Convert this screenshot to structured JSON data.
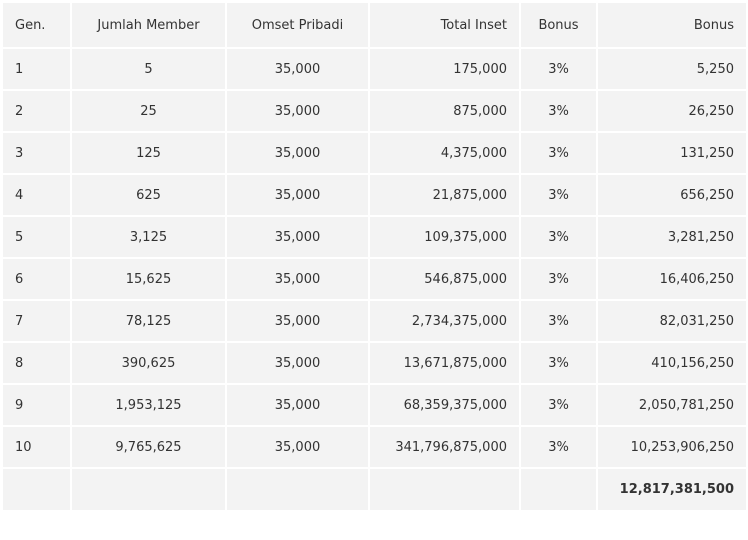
{
  "table": {
    "header": [
      "Gen.",
      "Jumlah Member",
      "Omset Pribadi",
      "Total Inset",
      "Bonus",
      "Bonus"
    ],
    "rows": [
      [
        "1",
        "5",
        "35,000",
        "175,000",
        "3%",
        "5,250"
      ],
      [
        "2",
        "25",
        "35,000",
        "875,000",
        "3%",
        "26,250"
      ],
      [
        "3",
        "125",
        "35,000",
        "4,375,000",
        "3%",
        "131,250"
      ],
      [
        "4",
        "625",
        "35,000",
        "21,875,000",
        "3%",
        "656,250"
      ],
      [
        "5",
        "3,125",
        "35,000",
        "109,375,000",
        "3%",
        "3,281,250"
      ],
      [
        "6",
        "15,625",
        "35,000",
        "546,875,000",
        "3%",
        "16,406,250"
      ],
      [
        "7",
        "78,125",
        "35,000",
        "2,734,375,000",
        "3%",
        "82,031,250"
      ],
      [
        "8",
        "390,625",
        "35,000",
        "13,671,875,000",
        "3%",
        "410,156,250"
      ],
      [
        "9",
        "1,953,125",
        "35,000",
        "68,359,375,000",
        "3%",
        "2,050,781,250"
      ],
      [
        "10",
        "9,765,625",
        "35,000",
        "341,796,875,000",
        "3%",
        "10,253,906,250"
      ]
    ],
    "total": "12,817,381,500"
  }
}
